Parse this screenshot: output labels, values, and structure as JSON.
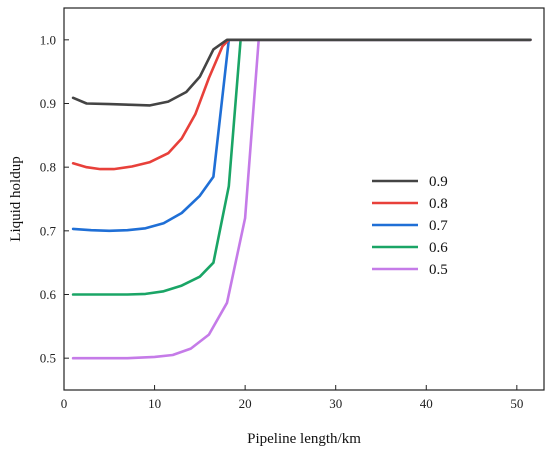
{
  "chart_data": {
    "type": "line",
    "title": "",
    "xlabel": "Pipeline length/km",
    "ylabel": "Liquid holdup",
    "xlim": [
      0,
      53
    ],
    "ylim": [
      0.45,
      1.05
    ],
    "xticks": [
      0,
      10,
      20,
      30,
      40,
      50
    ],
    "yticks": [
      0.5,
      0.6,
      0.7,
      0.8,
      0.9,
      1.0
    ],
    "xtick_labels": [
      "0",
      "10",
      "20",
      "30",
      "40",
      "50"
    ],
    "ytick_labels": [
      "0.5",
      "0.6",
      "0.7",
      "0.8",
      "0.9",
      "1.0"
    ],
    "grid": false,
    "legend_position": "right",
    "series": [
      {
        "name": "0.9",
        "color": "#444444",
        "x": [
          1,
          2.5,
          5,
          7.5,
          9.5,
          11.5,
          13.5,
          15,
          16.5,
          18,
          22,
          51.5
        ],
        "y": [
          0.909,
          0.9,
          0.899,
          0.898,
          0.897,
          0.903,
          0.918,
          0.942,
          0.985,
          1.0,
          1.0,
          1.0
        ]
      },
      {
        "name": "0.8",
        "color": "#e8403a",
        "x": [
          1,
          2.5,
          4,
          5.5,
          7.5,
          9.5,
          11.5,
          13,
          14.5,
          16,
          17.5,
          18.2,
          22,
          51.5
        ],
        "y": [
          0.806,
          0.8,
          0.797,
          0.797,
          0.801,
          0.808,
          0.822,
          0.845,
          0.883,
          0.94,
          0.99,
          1.0,
          1.0,
          1.0
        ]
      },
      {
        "name": "0.7",
        "color": "#1f6fd6",
        "x": [
          1,
          3,
          5,
          7,
          9,
          11,
          13,
          15,
          16.5,
          18.2,
          22,
          51.5
        ],
        "y": [
          0.703,
          0.701,
          0.7,
          0.701,
          0.704,
          0.712,
          0.728,
          0.755,
          0.785,
          1.0,
          1.0,
          1.0
        ]
      },
      {
        "name": "0.6",
        "color": "#1aa566",
        "x": [
          1,
          3,
          5,
          7,
          9,
          11,
          13,
          15,
          16.5,
          18.2,
          19.5,
          22,
          51.5
        ],
        "y": [
          0.6,
          0.6,
          0.6,
          0.6,
          0.601,
          0.605,
          0.614,
          0.628,
          0.65,
          0.77,
          1.0,
          1.0,
          1.0
        ]
      },
      {
        "name": "0.5",
        "color": "#c57be8",
        "x": [
          1,
          4,
          7,
          10,
          12,
          14,
          16,
          18,
          20,
          21.5,
          22,
          51.5
        ],
        "y": [
          0.5,
          0.5,
          0.5,
          0.502,
          0.505,
          0.515,
          0.537,
          0.587,
          0.72,
          1.0,
          1.0,
          1.0
        ]
      }
    ]
  }
}
